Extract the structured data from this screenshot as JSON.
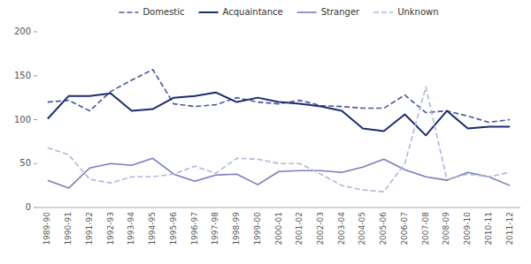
{
  "chart_data": {
    "type": "line",
    "categories": [
      "1989-90",
      "1990-91",
      "1991-92",
      "1992-93",
      "1993-94",
      "1994-95",
      "1995-96",
      "1996-97",
      "1997-98",
      "1998-99",
      "1999-00",
      "2000-01",
      "2001-02",
      "2002-03",
      "2003-04",
      "2004-05",
      "2005-06",
      "2006-07",
      "2007-08",
      "2008-09",
      "2009-10",
      "2010-11",
      "2011-12"
    ],
    "series": [
      {
        "name": "Domestic",
        "color": "#4a5799",
        "line_style": "dashed",
        "values": [
          120,
          122,
          110,
          132,
          145,
          157,
          118,
          115,
          117,
          125,
          120,
          118,
          122,
          116,
          115,
          113,
          113,
          128,
          108,
          110,
          104,
          97,
          100
        ]
      },
      {
        "name": "Acquaintance",
        "color": "#1a2d6e",
        "line_style": "solid",
        "values": [
          101,
          127,
          127,
          130,
          110,
          112,
          125,
          127,
          131,
          120,
          125,
          120,
          118,
          115,
          110,
          90,
          87,
          106,
          82,
          110,
          90,
          92,
          92
        ]
      },
      {
        "name": "Stranger",
        "color": "#7b7bbf",
        "line_style": "solid",
        "values": [
          31,
          22,
          45,
          50,
          48,
          56,
          38,
          30,
          37,
          38,
          26,
          41,
          42,
          42,
          40,
          46,
          55,
          43,
          35,
          31,
          40,
          35,
          25
        ]
      },
      {
        "name": "Unknown",
        "color": "#b0b8d8",
        "line_style": "dashed",
        "values": [
          68,
          60,
          32,
          28,
          35,
          35,
          38,
          47,
          39,
          56,
          55,
          50,
          50,
          38,
          25,
          20,
          18,
          50,
          137,
          32,
          38,
          35,
          40
        ]
      }
    ],
    "ylim": [
      0,
      200
    ],
    "yticks": [
      0,
      50,
      100,
      150,
      200
    ],
    "grid": false,
    "legend": "top"
  }
}
